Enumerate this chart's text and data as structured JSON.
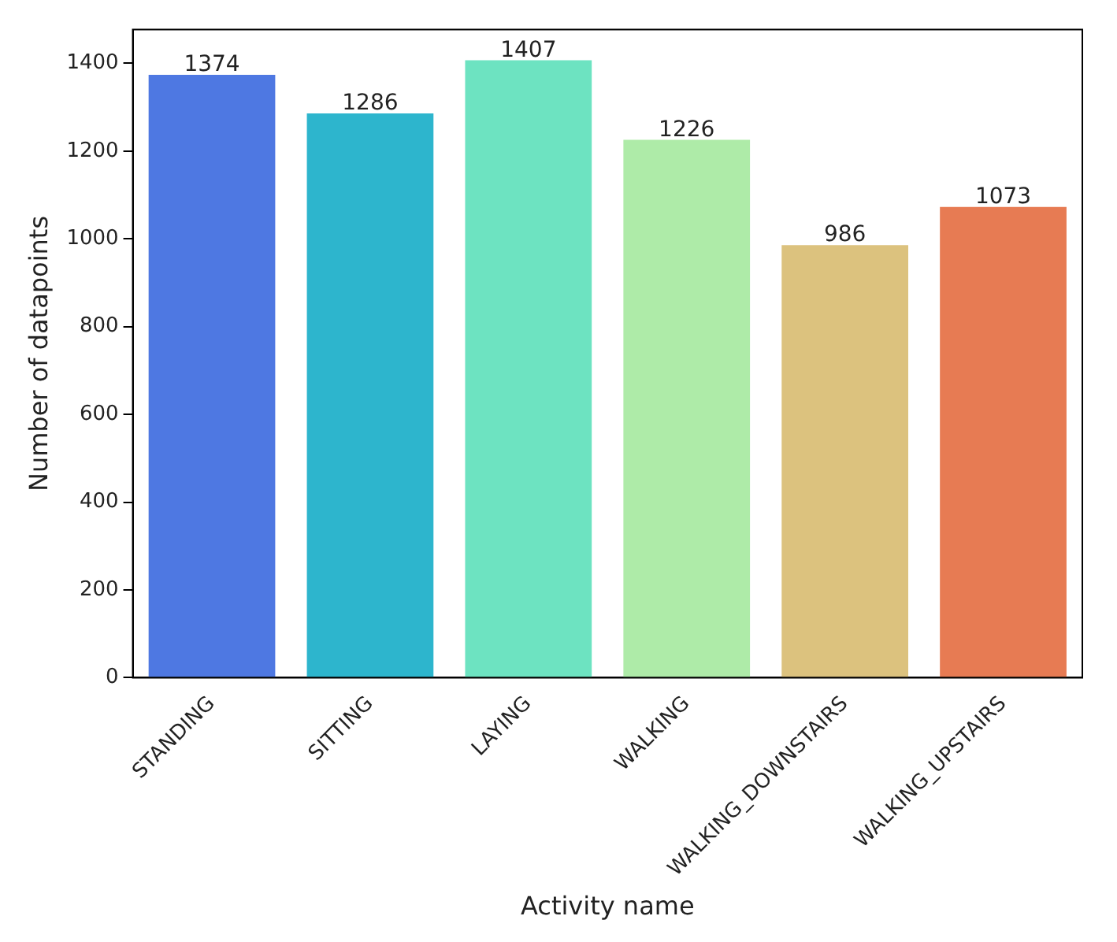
{
  "chart_data": {
    "type": "bar",
    "xlabel": "Activity name",
    "ylabel": "Number of datapoints",
    "categories": [
      "STANDING",
      "SITTING",
      "LAYING",
      "WALKING",
      "WALKING_DOWNSTAIRS",
      "WALKING_UPSTAIRS"
    ],
    "values": [
      1374,
      1286,
      1407,
      1226,
      986,
      1073
    ],
    "colors": [
      "#4e78e2",
      "#2db5cd",
      "#6de3c1",
      "#aeeba8",
      "#dcc27e",
      "#e77b53"
    ],
    "ylim": [
      0,
      1477
    ],
    "yticks": [
      0,
      200,
      400,
      600,
      800,
      1000,
      1200,
      1400
    ],
    "grid": false,
    "data_labels": true
  }
}
